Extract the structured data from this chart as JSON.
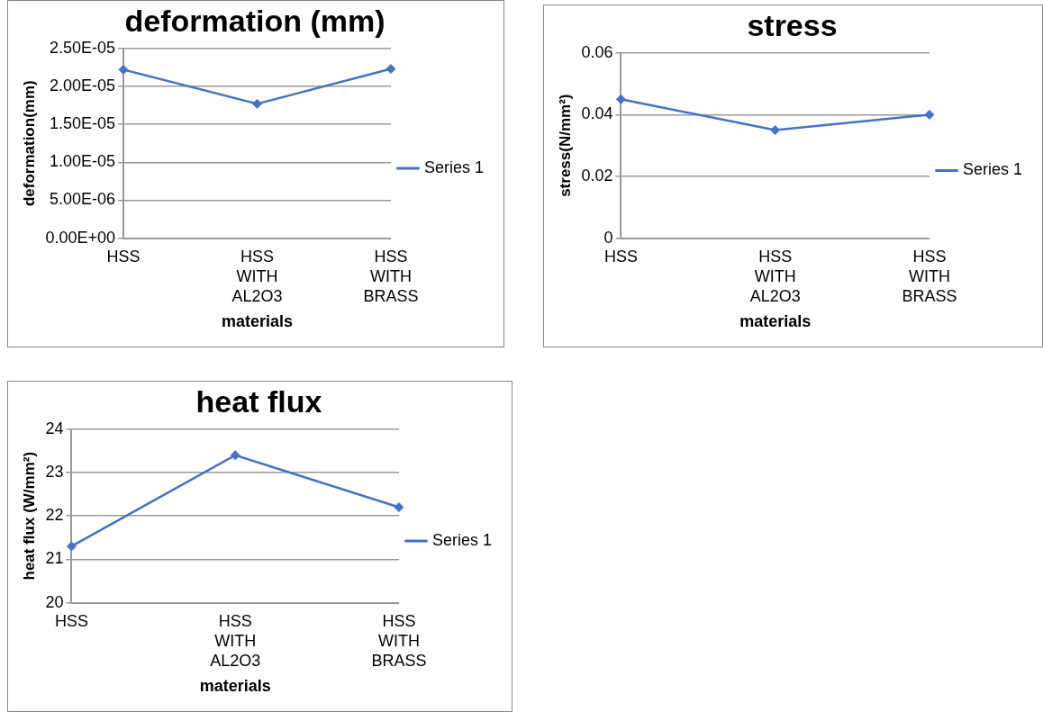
{
  "chart_data": [
    {
      "type": "line",
      "title": "deformation (mm)",
      "xlabel": "materials",
      "ylabel": "deformation(mm)",
      "categories": [
        "HSS",
        "HSS WITH AL2O3",
        "HSS WITH BRASS"
      ],
      "series": [
        {
          "name": "Series 1",
          "color": "#4472c4",
          "values": [
            2.22e-05,
            1.77e-05,
            2.23e-05
          ]
        }
      ],
      "ylim": [
        0,
        2.5e-05
      ],
      "yticks": [
        {
          "value": 0,
          "label": "0.00E+00"
        },
        {
          "value": 5e-06,
          "label": "5.00E-06"
        },
        {
          "value": 1e-05,
          "label": "1.00E-05"
        },
        {
          "value": 1.5e-05,
          "label": "1.50E-05"
        },
        {
          "value": 2e-05,
          "label": "2.00E-05"
        },
        {
          "value": 2.5e-05,
          "label": "2.50E-05"
        }
      ],
      "grid": "y",
      "legend": "right",
      "marker": "diamond",
      "line_style": "solid"
    },
    {
      "type": "line",
      "title": "stress",
      "xlabel": "materials",
      "ylabel": "stress(N/mm²)",
      "categories": [
        "HSS",
        "HSS WITH AL2O3",
        "HSS WITH BRASS"
      ],
      "series": [
        {
          "name": "Series 1",
          "color": "#4472c4",
          "values": [
            0.045,
            0.035,
            0.04
          ]
        }
      ],
      "ylim": [
        0,
        0.06
      ],
      "yticks": [
        0,
        0.02,
        0.04,
        0.06
      ],
      "grid": "y",
      "legend": "right",
      "marker": "diamond",
      "line_style": "solid"
    },
    {
      "type": "line",
      "title": "heat flux",
      "xlabel": "materials",
      "ylabel": "heat flux (W/mm²)",
      "categories": [
        "HSS",
        "HSS WITH AL2O3",
        "HSS WITH BRASS"
      ],
      "series": [
        {
          "name": "Series 1",
          "color": "#4472c4",
          "values": [
            21.3,
            23.4,
            22.2
          ]
        }
      ],
      "ylim": [
        20,
        24
      ],
      "yticks": [
        20,
        21,
        22,
        23,
        24
      ],
      "grid": "y",
      "legend": "right",
      "marker": "diamond",
      "line_style": "solid"
    }
  ]
}
